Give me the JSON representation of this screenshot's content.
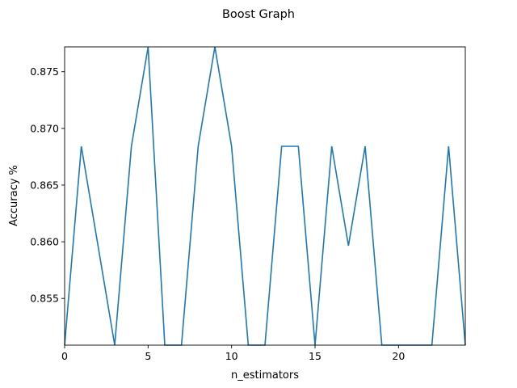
{
  "chart_data": {
    "type": "line",
    "title": "Boost Graph",
    "xlabel": "n_estimators",
    "ylabel": "Accuracy %",
    "xlim": [
      0,
      24
    ],
    "ylim": [
      0.85088,
      0.87719
    ],
    "xticks": [
      0,
      5,
      10,
      15,
      20
    ],
    "xtick_labels": [
      "0",
      "5",
      "10",
      "15",
      "20"
    ],
    "yticks": [
      0.855,
      0.86,
      0.865,
      0.87,
      0.875
    ],
    "ytick_labels": [
      "0.855",
      "0.860",
      "0.865",
      "0.870",
      "0.875"
    ],
    "grid": false,
    "series": [
      {
        "x": [
          0,
          1,
          2,
          3,
          4,
          5,
          6,
          7,
          8,
          9,
          10,
          11,
          12,
          13,
          14,
          15,
          16,
          17,
          18,
          19,
          20,
          21,
          22,
          23,
          24
        ],
        "values": [
          0.85088,
          0.86842,
          0.85965,
          0.85088,
          0.86842,
          0.87719,
          0.85088,
          0.85088,
          0.86842,
          0.87719,
          0.86842,
          0.85088,
          0.85088,
          0.86842,
          0.86842,
          0.85088,
          0.86842,
          0.85965,
          0.86842,
          0.85088,
          0.85088,
          0.85088,
          0.85088,
          0.86842,
          0.85088
        ],
        "color": "#1f77b4"
      }
    ]
  }
}
